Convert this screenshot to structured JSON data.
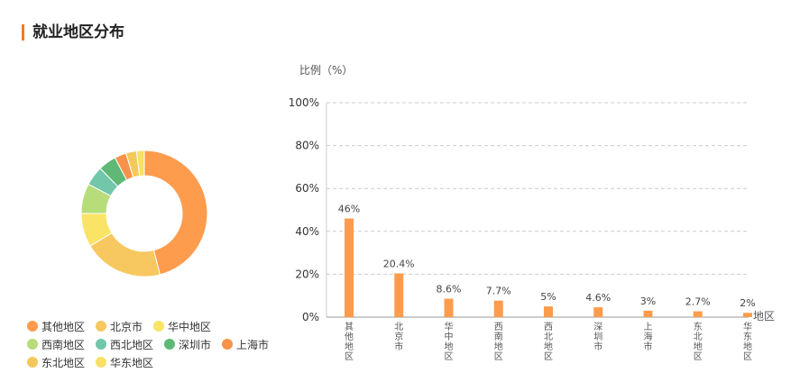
{
  "page": {
    "title": "就业地区分布"
  },
  "chart_data": [
    {
      "type": "pie",
      "variant": "donut",
      "categories": [
        "其他地区",
        "北京市",
        "华中地区",
        "西南地区",
        "西北地区",
        "深圳市",
        "上海市",
        "东北地区",
        "华东地区"
      ],
      "values": [
        46,
        20.4,
        8.6,
        7.7,
        5,
        4.6,
        3,
        2.7,
        2
      ],
      "colors": [
        "#fd9c4d",
        "#f6c85f",
        "#f9e466",
        "#b7dc7a",
        "#72c6a9",
        "#5fb876",
        "#f7924a",
        "#f4c95c",
        "#f9e066"
      ],
      "legend_position": "bottom-left"
    },
    {
      "type": "bar",
      "categories": [
        "其他地区",
        "北京市",
        "华中地区",
        "西南地区",
        "西北地区",
        "深圳市",
        "上海市",
        "东北地区",
        "华东地区"
      ],
      "values": [
        46,
        20.4,
        8.6,
        7.7,
        5,
        4.6,
        3,
        2.7,
        2
      ],
      "data_labels": [
        "46%",
        "20.4%",
        "8.6%",
        "7.7%",
        "5%",
        "4.6%",
        "3%",
        "2.7%",
        "2%"
      ],
      "ylabel": "比例（%）",
      "xlabel": "地区",
      "ylim": [
        0,
        100
      ],
      "yticks": [
        "0%",
        "20%",
        "40%",
        "60%",
        "80%",
        "100%"
      ],
      "grid": true,
      "bar_color": "#fd9c4d"
    }
  ]
}
